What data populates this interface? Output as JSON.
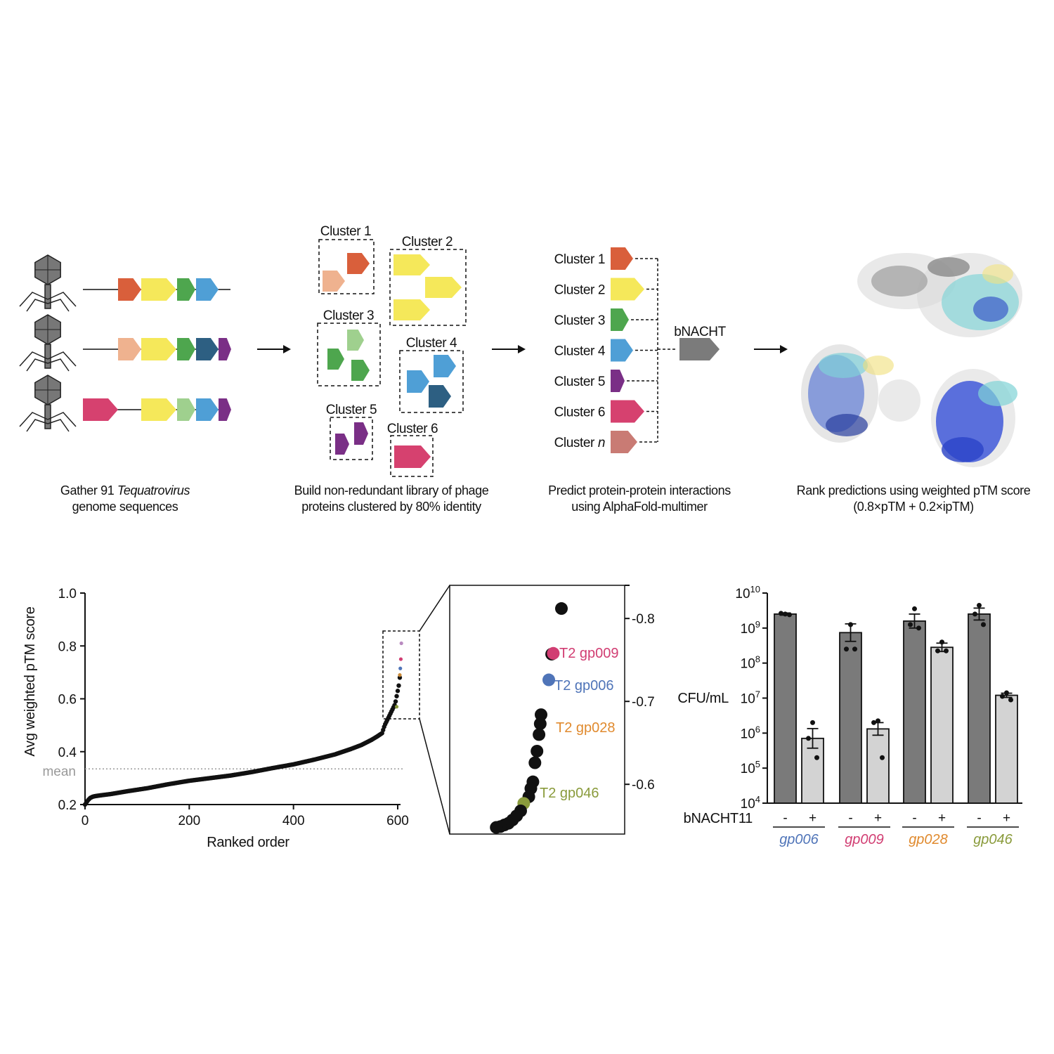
{
  "workflow": {
    "steps": [
      {
        "caption_pre": "Gather 91 ",
        "caption_em": "Tequatrovirus",
        "caption_line2": "genome sequences"
      },
      {
        "caption_line1": "Build non-redundant library of phage",
        "caption_line2": "proteins clustered by 80% identity"
      },
      {
        "caption_line1": "Predict protein-protein interactions",
        "caption_line2": "using AlphaFold-multimer"
      },
      {
        "caption_line1": "Rank predictions using weighted pTM score",
        "caption_line2": "(0.8×pTM + 0.2×ipTM)"
      }
    ],
    "cluster_boxes": [
      "Cluster 1",
      "Cluster 2",
      "Cluster 3",
      "Cluster 4",
      "Cluster 5",
      "Cluster 6"
    ],
    "cluster_list": [
      {
        "label": "Cluster 1",
        "color": "#d95f3b"
      },
      {
        "label": "Cluster 2",
        "color": "#f5e85a"
      },
      {
        "label": "Cluster 3",
        "color": "#4ea64e"
      },
      {
        "label": "Cluster 4",
        "color": "#4f9fd6"
      },
      {
        "label": "Cluster 5",
        "color": "#7a2f86"
      },
      {
        "label": "Cluster 6",
        "color": "#d6416f"
      },
      {
        "label_pre": "Cluster ",
        "label_em": "n",
        "color": "#c97b74"
      }
    ],
    "bait_label": "bNACHT",
    "colors": {
      "orange": "#d95f3b",
      "peach": "#efb28f",
      "yellow": "#f5e85a",
      "green": "#4ea64e",
      "lightgreen": "#9fd08e",
      "blue": "#4f9fd6",
      "navy": "#2d5f82",
      "purple": "#7a2f86",
      "pink": "#d6416f",
      "grey": "#7b7b7b"
    }
  },
  "chart_data": [
    {
      "type": "scatter",
      "xlabel": "Ranked order",
      "ylabel": "Avg weighted pTM score",
      "xlim": [
        0,
        610
      ],
      "ylim": [
        0.2,
        1.0
      ],
      "xticks": [
        "0",
        "200",
        "400",
        "600"
      ],
      "yticks": [
        "0.2",
        "0.4",
        "0.6",
        "0.8",
        "1.0"
      ],
      "mean_label": "mean",
      "mean_value": 0.335,
      "curve": {
        "x": [
          0,
          2,
          5,
          10,
          15,
          20,
          30,
          50,
          80,
          120,
          160,
          200,
          240,
          280,
          320,
          360,
          400,
          440,
          480,
          510,
          530,
          550,
          560,
          570,
          575,
          580,
          585,
          590,
          595,
          598,
          600,
          602,
          604,
          606,
          607
        ],
        "y": [
          0.2,
          0.205,
          0.215,
          0.225,
          0.23,
          0.232,
          0.235,
          0.24,
          0.25,
          0.262,
          0.277,
          0.29,
          0.3,
          0.31,
          0.323,
          0.338,
          0.352,
          0.37,
          0.39,
          0.41,
          0.425,
          0.445,
          0.457,
          0.47,
          0.5,
          0.52,
          0.54,
          0.56,
          0.58,
          0.61,
          0.63,
          0.65,
          0.68,
          0.72,
          0.8
        ]
      },
      "highlight": [
        {
          "x": 604,
          "y": 0.69,
          "color": "#c98a38"
        },
        {
          "x": 605,
          "y": 0.715,
          "color": "#4f74b8"
        },
        {
          "x": 606,
          "y": 0.75,
          "color": "#d13d72"
        },
        {
          "x": 607,
          "y": 0.81,
          "color": "#b98ac0"
        },
        {
          "x": 598,
          "y": 0.57,
          "color": "#8a9b3c"
        }
      ],
      "grid": false
    },
    {
      "type": "scatter",
      "ylim": [
        0.54,
        0.84
      ],
      "yticks": [
        "0.6",
        "0.7",
        "0.8"
      ],
      "points": [
        {
          "x": 0.1,
          "y": 0.812
        },
        {
          "x": 0.052,
          "y": 0.757
        },
        {
          "x": 0.06,
          "y": 0.758,
          "color": "#d13d72",
          "label": "T2 gp009"
        },
        {
          "x": 0.038,
          "y": 0.726,
          "color": "#4f74b8",
          "label": "T2 gp006"
        },
        {
          "x": 0.0,
          "y": 0.684
        },
        {
          "x": -0.004,
          "y": 0.673
        },
        {
          "x": -0.01,
          "y": 0.66
        },
        {
          "x": -0.02,
          "y": 0.64
        },
        {
          "x": -0.03,
          "y": 0.626
        },
        {
          "x": -0.04,
          "y": 0.603
        },
        {
          "x": -0.05,
          "y": 0.595
        },
        {
          "x": -0.06,
          "y": 0.585
        },
        {
          "x": -0.085,
          "y": 0.577,
          "color": "#8a9b3c",
          "label": "T2 gp046"
        },
        {
          "x": -0.1,
          "y": 0.568
        },
        {
          "x": -0.12,
          "y": 0.562
        },
        {
          "x": -0.14,
          "y": 0.557
        },
        {
          "x": -0.16,
          "y": 0.553
        },
        {
          "x": -0.18,
          "y": 0.551
        },
        {
          "x": -0.2,
          "y": 0.549
        },
        {
          "x": -0.22,
          "y": 0.548
        }
      ],
      "labels": [
        {
          "text": "T2 gp009",
          "color": "#d13d72"
        },
        {
          "text": "T2 gp006",
          "color": "#4f74b8"
        },
        {
          "text": "T2 gp028",
          "color": "#e08a2e"
        },
        {
          "text": "T2 gp046",
          "color": "#8a9b3c"
        }
      ]
    },
    {
      "type": "bar",
      "ylabel": "CFU/mL",
      "scale": "log",
      "ylim": [
        4,
        10
      ],
      "yticks": [
        {
          "base": "10",
          "exp": "4"
        },
        {
          "base": "10",
          "exp": "5"
        },
        {
          "base": "10",
          "exp": "6"
        },
        {
          "base": "10",
          "exp": "7"
        },
        {
          "base": "10",
          "exp": "8"
        },
        {
          "base": "10",
          "exp": "9"
        },
        {
          "base": "10",
          "exp": "10"
        }
      ],
      "row_label": "bNACHT11",
      "minus": "-",
      "plus": "+",
      "groups": [
        {
          "name": "gp006",
          "color": "#4f74b8",
          "bars": [
            {
              "condition": "-",
              "log10": 9.4,
              "err": 0.03,
              "pts": [
                9.4,
                9.42,
                9.38
              ]
            },
            {
              "condition": "+",
              "log10": 5.85,
              "err": 0.28,
              "pts": [
                6.3,
                5.85,
                5.3
              ]
            }
          ]
        },
        {
          "name": "gp009",
          "color": "#d13d72",
          "bars": [
            {
              "condition": "-",
              "log10": 8.87,
              "err": 0.25,
              "pts": [
                9.1,
                8.4,
                8.4
              ]
            },
            {
              "condition": "+",
              "log10": 6.12,
              "err": 0.18,
              "pts": [
                6.35,
                6.3,
                5.3
              ]
            }
          ]
        },
        {
          "name": "gp028",
          "color": "#e08a2e",
          "bars": [
            {
              "condition": "-",
              "log10": 9.2,
              "err": 0.2,
              "pts": [
                9.55,
                9.1,
                9.0
              ]
            },
            {
              "condition": "+",
              "log10": 8.45,
              "err": 0.12,
              "pts": [
                8.6,
                8.35,
                8.35
              ]
            }
          ]
        },
        {
          "name": "gp046",
          "color": "#8a9b3c",
          "bars": [
            {
              "condition": "-",
              "log10": 9.4,
              "err": 0.17,
              "pts": [
                9.65,
                9.4,
                9.1
              ]
            },
            {
              "condition": "+",
              "log10": 7.08,
              "err": 0.06,
              "pts": [
                7.15,
                7.05,
                6.95
              ]
            }
          ]
        }
      ]
    }
  ]
}
